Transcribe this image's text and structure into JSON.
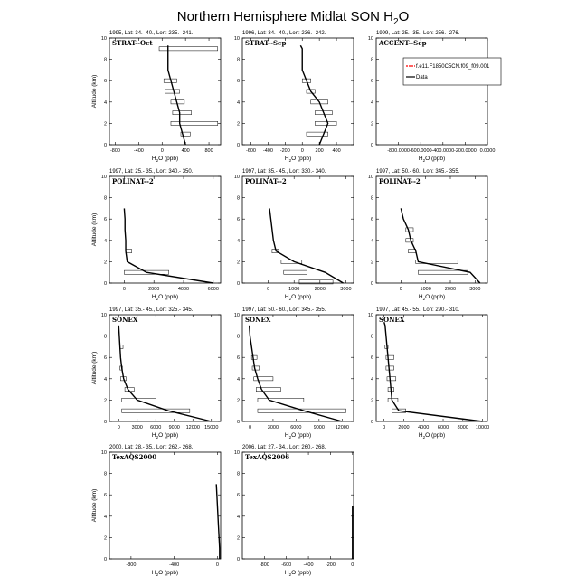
{
  "title": "Northern Hemisphere Midlat SON H",
  "title_sub": "2",
  "title_tail": "O",
  "legend": {
    "model_label": "f.e11.F1850C5CN.f09_f09.001",
    "data_label": "Data",
    "model_color": "#ff0000",
    "data_color": "#000000"
  },
  "chart_data": [
    {
      "type": "line",
      "header": "1995, Lat: 34.- 40., Lon: 235.- 241.",
      "campaign": "STRAT--Oct",
      "xlabel_main": "H",
      "xlabel_sub": "2",
      "xlabel_tail": "O (ppb)",
      "ylabel": "Altitude (km)",
      "xlim": [
        -900,
        1000
      ],
      "xticks": [
        -800,
        -400,
        0,
        400,
        800
      ],
      "xticklabels": [
        "-800",
        "-400",
        "0",
        "400",
        "800"
      ],
      "ylim": [
        0,
        10
      ],
      "yticks": [
        0,
        2,
        4,
        6,
        8,
        10
      ],
      "series": [
        {
          "name": "Data",
          "x": [
            400,
            350,
            300,
            300,
            250,
            200,
            150,
            100,
            100,
            100,
            100
          ],
          "y": [
            0,
            1,
            2,
            3,
            4,
            5,
            6,
            7,
            8,
            9,
            9.3
          ]
        }
      ],
      "boxes": [
        {
          "x": [
            320,
            480
          ],
          "y": [
            0.95,
            1.05
          ]
        },
        {
          "x": [
            150,
            950
          ],
          "y": [
            1.95,
            2.05
          ]
        },
        {
          "x": [
            180,
            500
          ],
          "y": [
            2.95,
            3.05
          ]
        },
        {
          "x": [
            150,
            380
          ],
          "y": [
            3.95,
            4.05
          ]
        },
        {
          "x": [
            50,
            300
          ],
          "y": [
            4.95,
            5.05
          ]
        },
        {
          "x": [
            30,
            250
          ],
          "y": [
            5.95,
            6.05
          ]
        },
        {
          "x": [
            -50,
            950
          ],
          "y": [
            8.95,
            9.05
          ]
        }
      ]
    },
    {
      "type": "line",
      "header": "1996, Lat: 34.- 40., Lon: 236.- 242.",
      "campaign": "STRAT--Sep",
      "xlabel_main": "H",
      "xlabel_sub": "2",
      "xlabel_tail": "O (ppb)",
      "ylabel": "Altitude (km)",
      "xlim": [
        -700,
        600
      ],
      "xticks": [
        -600,
        -400,
        -200,
        0,
        200,
        400
      ],
      "xticklabels": [
        "-600",
        "-400",
        "-200",
        "0",
        "200",
        "400"
      ],
      "ylim": [
        0,
        10
      ],
      "yticks": [
        0,
        2,
        4,
        6,
        8,
        10
      ],
      "series": [
        {
          "name": "Data",
          "x": [
            200,
            250,
            300,
            250,
            200,
            100,
            50,
            0,
            0,
            0,
            -20
          ],
          "y": [
            0,
            1,
            2,
            3,
            4,
            5,
            6,
            7,
            8,
            9,
            9.3
          ]
        }
      ],
      "boxes": [
        {
          "x": [
            50,
            300
          ],
          "y": [
            0.95,
            1.05
          ]
        },
        {
          "x": [
            150,
            400
          ],
          "y": [
            1.95,
            2.05
          ]
        },
        {
          "x": [
            150,
            350
          ],
          "y": [
            2.95,
            3.05
          ]
        },
        {
          "x": [
            100,
            300
          ],
          "y": [
            3.95,
            4.05
          ]
        },
        {
          "x": [
            50,
            150
          ],
          "y": [
            4.95,
            5.05
          ]
        },
        {
          "x": [
            0,
            100
          ],
          "y": [
            5.95,
            6.05
          ]
        }
      ]
    },
    {
      "type": "line",
      "header": "1999, Lat: 25.- 35., Lon: 256.- 276.",
      "campaign": "ACCENT--Sep",
      "xlabel_main": "H",
      "xlabel_sub": "2",
      "xlabel_tail": "O (ppb)",
      "ylabel": "Altitude (km)",
      "xlim": [
        -1000,
        0
      ],
      "xticks": [
        -800,
        -600,
        -400,
        -200,
        0
      ],
      "xticklabels": [
        "-800.0000",
        "-600.0000",
        "-400.0000",
        "-200.0000",
        "0.0000"
      ],
      "ylim": [
        0,
        10
      ],
      "yticks": [
        0,
        2,
        4,
        6,
        8,
        10
      ],
      "series": [],
      "boxes": [],
      "has_legend": true
    },
    {
      "type": "line",
      "header": "1997, Lat: 25.- 35., Lon: 340.- 350.",
      "campaign": "POLINAT--2",
      "xlabel_main": "H",
      "xlabel_sub": "2",
      "xlabel_tail": "O (ppb)",
      "ylabel": "Altitude (km)",
      "xlim": [
        -1000,
        6500
      ],
      "xticks": [
        0,
        2000,
        4000,
        6000
      ],
      "xticklabels": [
        "0",
        "2000",
        "4000",
        "6000"
      ],
      "ylim": [
        0,
        10
      ],
      "yticks": [
        0,
        2,
        4,
        6,
        8,
        10
      ],
      "series": [
        {
          "name": "Data",
          "x": [
            6000,
            1500,
            200,
            100,
            100,
            50,
            50,
            0
          ],
          "y": [
            0,
            1,
            2,
            3,
            4,
            5,
            6,
            7
          ]
        }
      ],
      "boxes": [
        {
          "x": [
            0,
            3000
          ],
          "y": [
            0.95,
            1.05
          ]
        },
        {
          "x": [
            100,
            500
          ],
          "y": [
            2.95,
            3.05
          ]
        }
      ]
    },
    {
      "type": "line",
      "header": "1997, Lat: 35.- 45., Lon: 330.- 340.",
      "campaign": "POLINAT--2",
      "xlabel_main": "H",
      "xlabel_sub": "2",
      "xlabel_tail": "O (ppb)",
      "ylabel": "Altitude (km)",
      "xlim": [
        -1000,
        3300
      ],
      "xticks": [
        0,
        1000,
        2000,
        3000
      ],
      "xticklabels": [
        "0",
        "1000",
        "2000",
        "3000"
      ],
      "ylim": [
        0,
        10
      ],
      "yticks": [
        0,
        2,
        4,
        6,
        8,
        10
      ],
      "series": [
        {
          "name": "Data",
          "x": [
            2900,
            2200,
            1000,
            300,
            200,
            150,
            100,
            50
          ],
          "y": [
            0,
            1,
            2,
            3,
            4,
            5,
            6,
            7
          ]
        }
      ],
      "boxes": [
        {
          "x": [
            1200,
            2500
          ],
          "y": [
            0.05,
            0.15
          ]
        },
        {
          "x": [
            600,
            1500
          ],
          "y": [
            0.95,
            1.05
          ]
        },
        {
          "x": [
            500,
            1300
          ],
          "y": [
            1.95,
            2.05
          ]
        },
        {
          "x": [
            150,
            400
          ],
          "y": [
            2.95,
            3.05
          ]
        }
      ]
    },
    {
      "type": "line",
      "header": "1997, Lat: 50.- 60., Lon: 345.- 355.",
      "campaign": "POLINAT--2",
      "xlabel_main": "H",
      "xlabel_sub": "2",
      "xlabel_tail": "O (ppb)",
      "ylabel": "Altitude (km)",
      "xlim": [
        -1000,
        3500
      ],
      "xticks": [
        0,
        1000,
        2000,
        3000
      ],
      "xticklabels": [
        "0",
        "1000",
        "2000",
        "3000"
      ],
      "ylim": [
        0,
        10
      ],
      "yticks": [
        0,
        2,
        4,
        6,
        8,
        10
      ],
      "series": [
        {
          "name": "Data",
          "x": [
            3200,
            2800,
            700,
            600,
            400,
            300,
            100,
            0
          ],
          "y": [
            0,
            1,
            2,
            3,
            4,
            5,
            6,
            7
          ]
        }
      ],
      "boxes": [
        {
          "x": [
            700,
            2700
          ],
          "y": [
            0.95,
            1.05
          ]
        },
        {
          "x": [
            600,
            2300
          ],
          "y": [
            1.95,
            2.05
          ]
        },
        {
          "x": [
            300,
            600
          ],
          "y": [
            2.95,
            3.05
          ]
        },
        {
          "x": [
            200,
            500
          ],
          "y": [
            3.95,
            4.05
          ]
        },
        {
          "x": [
            200,
            500
          ],
          "y": [
            4.95,
            5.05
          ]
        }
      ]
    },
    {
      "type": "line",
      "header": "1997, Lat: 35.- 45., Lon: 325.- 345.",
      "campaign": "SONEX",
      "xlabel_main": "H",
      "xlabel_sub": "2",
      "xlabel_tail": "O (ppb)",
      "ylabel": "Altitude (km)",
      "xlim": [
        -1500,
        16500
      ],
      "xticks": [
        0,
        3000,
        6000,
        9000,
        12000,
        15000
      ],
      "xticklabels": [
        "0",
        "3000",
        "6000",
        "9000",
        "12000",
        "15000"
      ],
      "ylim": [
        0,
        10
      ],
      "yticks": [
        0,
        2,
        4,
        6,
        8,
        10
      ],
      "series": [
        {
          "name": "Data",
          "x": [
            15000,
            8000,
            3000,
            1500,
            800,
            500,
            300,
            200,
            100,
            0
          ],
          "y": [
            0,
            1,
            2,
            3,
            4,
            5,
            6,
            7,
            8,
            9
          ]
        }
      ],
      "boxes": [
        {
          "x": [
            500,
            11500
          ],
          "y": [
            0.95,
            1.05
          ]
        },
        {
          "x": [
            500,
            6000
          ],
          "y": [
            1.95,
            2.05
          ]
        },
        {
          "x": [
            1000,
            2500
          ],
          "y": [
            2.95,
            3.05
          ]
        },
        {
          "x": [
            300,
            1200
          ],
          "y": [
            3.95,
            4.05
          ]
        },
        {
          "x": [
            200,
            600
          ],
          "y": [
            4.95,
            5.05
          ]
        },
        {
          "x": [
            200,
            700
          ],
          "y": [
            6.95,
            7.05
          ]
        }
      ]
    },
    {
      "type": "line",
      "header": "1997, Lat: 50.- 60., Lon: 345.- 355.",
      "campaign": "SONEX",
      "xlabel_main": "H",
      "xlabel_sub": "2",
      "xlabel_tail": "O (ppb)",
      "ylabel": "Altitude (km)",
      "xlim": [
        -1000,
        13500
      ],
      "xticks": [
        0,
        3000,
        6000,
        9000,
        12000
      ],
      "xticklabels": [
        "0",
        "3000",
        "6000",
        "9000",
        "12000"
      ],
      "ylim": [
        0,
        10
      ],
      "yticks": [
        0,
        2,
        4,
        6,
        8,
        10
      ],
      "series": [
        {
          "name": "Data",
          "x": [
            12000,
            7000,
            2500,
            1500,
            1000,
            600,
            400,
            200,
            0,
            -100
          ],
          "y": [
            0,
            1,
            2,
            3,
            4,
            5,
            6,
            7,
            8,
            9
          ]
        }
      ],
      "boxes": [
        {
          "x": [
            1000,
            12500
          ],
          "y": [
            0.95,
            1.05
          ]
        },
        {
          "x": [
            1000,
            7000
          ],
          "y": [
            1.95,
            2.05
          ]
        },
        {
          "x": [
            800,
            4000
          ],
          "y": [
            2.95,
            3.05
          ]
        },
        {
          "x": [
            500,
            3000
          ],
          "y": [
            3.95,
            4.05
          ]
        },
        {
          "x": [
            300,
            1200
          ],
          "y": [
            4.95,
            5.05
          ]
        },
        {
          "x": [
            200,
            900
          ],
          "y": [
            5.95,
            6.05
          ]
        }
      ]
    },
    {
      "type": "line",
      "header": "1997, Lat: 45.- 55., Lon: 290.- 310.",
      "campaign": "SONEX",
      "xlabel_main": "H",
      "xlabel_sub": "2",
      "xlabel_tail": "O (ppb)",
      "ylabel": "Altitude (km)",
      "xlim": [
        -800,
        10500
      ],
      "xticks": [
        0,
        2000,
        4000,
        6000,
        8000,
        10000
      ],
      "xticklabels": [
        "0",
        "2000",
        "4000",
        "6000",
        "8000",
        "10000"
      ],
      "ylim": [
        0,
        10
      ],
      "yticks": [
        0,
        2,
        4,
        6,
        8,
        10
      ],
      "series": [
        {
          "name": "Data",
          "x": [
            10000,
            1500,
            800,
            700,
            600,
            500,
            400,
            300,
            200,
            100,
            0
          ],
          "y": [
            0,
            1,
            2,
            3,
            4,
            5,
            6,
            7,
            8,
            9,
            9.3
          ]
        }
      ],
      "boxes": [
        {
          "x": [
            800,
            2200
          ],
          "y": [
            0.95,
            1.05
          ]
        },
        {
          "x": [
            400,
            1400
          ],
          "y": [
            1.95,
            2.05
          ]
        },
        {
          "x": [
            400,
            1000
          ],
          "y": [
            2.95,
            3.05
          ]
        },
        {
          "x": [
            300,
            1200
          ],
          "y": [
            3.95,
            4.05
          ]
        },
        {
          "x": [
            200,
            1000
          ],
          "y": [
            4.95,
            5.05
          ]
        },
        {
          "x": [
            200,
            1000
          ],
          "y": [
            5.95,
            6.05
          ]
        },
        {
          "x": [
            100,
            400
          ],
          "y": [
            6.95,
            7.05
          ]
        }
      ]
    },
    {
      "type": "line",
      "header": "2000, Lat: 28.- 35., Lon: 262.- 268.",
      "campaign": "TexAQS2000",
      "xlabel_main": "H",
      "xlabel_sub": "2",
      "xlabel_tail": "O (ppb)",
      "ylabel": "Altitude (km)",
      "xlim": [
        -1000,
        30
      ],
      "xticks": [
        -800,
        -400,
        0
      ],
      "xticklabels": [
        "-800",
        "-400",
        "0"
      ],
      "ylim": [
        0,
        10
      ],
      "yticks": [
        0,
        2,
        4,
        6,
        8,
        10
      ],
      "series": [
        {
          "name": "Data",
          "x": [
            20,
            20,
            15,
            10,
            5,
            0,
            -5,
            -10
          ],
          "y": [
            0,
            1,
            2,
            3,
            4,
            5,
            6,
            7
          ]
        }
      ],
      "boxes": []
    },
    {
      "type": "line",
      "header": "2006, Lat: 27.- 34., Lon: 260.- 268.",
      "campaign": "TexAQS2006",
      "xlabel_main": "H",
      "xlabel_sub": "2",
      "xlabel_tail": "O (ppb)",
      "ylabel": "Altitude (km)",
      "xlim": [
        -1000,
        10
      ],
      "xticks": [
        -800,
        -600,
        -400,
        -200,
        0
      ],
      "xticklabels": [
        "-800",
        "-600",
        "-400",
        "-200",
        "0"
      ],
      "ylim": [
        0,
        10
      ],
      "yticks": [
        0,
        2,
        4,
        6,
        8,
        10
      ],
      "series": [
        {
          "name": "Data",
          "x": [
            0,
            0,
            0,
            0,
            0,
            0
          ],
          "y": [
            0,
            1,
            2,
            3,
            4,
            5
          ]
        }
      ],
      "boxes": []
    }
  ]
}
